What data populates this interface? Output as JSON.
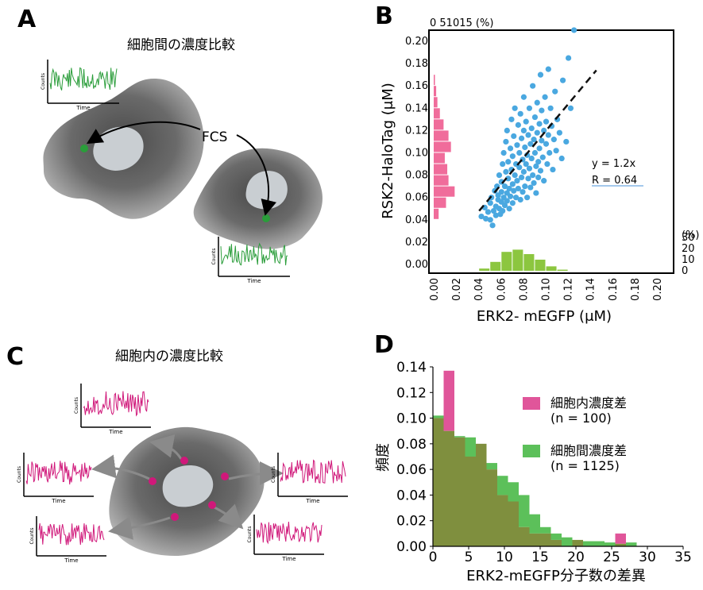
{
  "panel_labels": [
    "A",
    "B",
    "C",
    "D"
  ],
  "panel_a": {
    "title": "細胞間の濃度比較",
    "fcs_label": "FCS",
    "trace_ylabel": "Counts",
    "trace_xlabel": "Time",
    "trace_color": "#2a9d3a",
    "spot_color": "#2a9d3a"
  },
  "panel_c": {
    "title": "細胞内の濃度比較",
    "trace_ylabel": "Counts",
    "trace_xlabel": "Time",
    "trace_color": "#d0187a",
    "spot_color": "#d0187a"
  },
  "chart_data": [
    {
      "type": "scatter",
      "panel": "B",
      "xlabel": "ERK2- mEGFP (μM)",
      "ylabel": "RSK2-HaloTag (μM)",
      "xticks": [
        "0.00",
        "0.02",
        "0.04",
        "0.06",
        "0.08",
        "0.10",
        "0.12",
        "0.14",
        "0.16",
        "0.18",
        "0.20"
      ],
      "yticks": [
        "0.00",
        "0.02",
        "0.04",
        "0.06",
        "0.08",
        "0.10",
        "0.12",
        "0.14",
        "0.16",
        "0.18",
        "0.20"
      ],
      "xlim": [
        0,
        0.2
      ],
      "ylim": [
        0,
        0.2
      ],
      "top_axis_label": "0 51015 (%)",
      "right_axis_label": "(%)",
      "right_ticks": [
        "30",
        "20",
        "10",
        "0"
      ],
      "fit_label": "y = 1.2x",
      "r_label": "R = 0.64",
      "fit_slope": 1.2,
      "colors": {
        "points": "#4aa8e0",
        "x_hist": "#8cc63f",
        "y_hist": "#f06c9b",
        "fit": "#111111"
      },
      "x_hist": {
        "bin_centers": [
          0.045,
          0.055,
          0.065,
          0.075,
          0.085,
          0.095,
          0.105,
          0.115
        ],
        "percent": [
          2,
          8,
          17,
          19,
          15,
          10,
          4,
          1
        ]
      },
      "y_hist": {
        "bin_centers": [
          0.045,
          0.055,
          0.065,
          0.075,
          0.085,
          0.095,
          0.105,
          0.115,
          0.125,
          0.135,
          0.145,
          0.155,
          0.165
        ],
        "percent": [
          4,
          10,
          17,
          12,
          11,
          9,
          14,
          12,
          8,
          5,
          3,
          2,
          1
        ]
      },
      "points": [
        [
          0.042,
          0.043
        ],
        [
          0.045,
          0.051
        ],
        [
          0.046,
          0.041
        ],
        [
          0.048,
          0.047
        ],
        [
          0.05,
          0.055
        ],
        [
          0.05,
          0.04
        ],
        [
          0.051,
          0.06
        ],
        [
          0.052,
          0.035
        ],
        [
          0.053,
          0.048
        ],
        [
          0.054,
          0.066
        ],
        [
          0.055,
          0.052
        ],
        [
          0.055,
          0.044
        ],
        [
          0.056,
          0.07
        ],
        [
          0.057,
          0.058
        ],
        [
          0.057,
          0.062
        ],
        [
          0.058,
          0.05
        ],
        [
          0.058,
          0.08
        ],
        [
          0.059,
          0.045
        ],
        [
          0.06,
          0.074
        ],
        [
          0.06,
          0.056
        ],
        [
          0.06,
          0.065
        ],
        [
          0.061,
          0.09
        ],
        [
          0.061,
          0.048
        ],
        [
          0.062,
          0.06
        ],
        [
          0.062,
          0.1
        ],
        [
          0.063,
          0.07
        ],
        [
          0.063,
          0.053
        ],
        [
          0.064,
          0.083
        ],
        [
          0.064,
          0.11
        ],
        [
          0.065,
          0.064
        ],
        [
          0.065,
          0.057
        ],
        [
          0.065,
          0.12
        ],
        [
          0.066,
          0.077
        ],
        [
          0.066,
          0.092
        ],
        [
          0.067,
          0.05
        ],
        [
          0.067,
          0.068
        ],
        [
          0.068,
          0.104
        ],
        [
          0.068,
          0.061
        ],
        [
          0.069,
          0.085
        ],
        [
          0.069,
          0.13
        ],
        [
          0.07,
          0.072
        ],
        [
          0.07,
          0.055
        ],
        [
          0.07,
          0.097
        ],
        [
          0.071,
          0.115
        ],
        [
          0.071,
          0.066
        ],
        [
          0.072,
          0.08
        ],
        [
          0.072,
          0.14
        ],
        [
          0.073,
          0.06
        ],
        [
          0.073,
          0.09
        ],
        [
          0.074,
          0.107
        ],
        [
          0.074,
          0.075
        ],
        [
          0.075,
          0.125
        ],
        [
          0.075,
          0.068
        ],
        [
          0.076,
          0.087
        ],
        [
          0.076,
          0.1
        ],
        [
          0.077,
          0.058
        ],
        [
          0.077,
          0.135
        ],
        [
          0.078,
          0.078
        ],
        [
          0.078,
          0.113
        ],
        [
          0.079,
          0.094
        ],
        [
          0.079,
          0.065
        ],
        [
          0.08,
          0.12
        ],
        [
          0.08,
          0.083
        ],
        [
          0.08,
          0.15
        ],
        [
          0.081,
          0.07
        ],
        [
          0.081,
          0.105
        ],
        [
          0.082,
          0.09
        ],
        [
          0.082,
          0.128
        ],
        [
          0.083,
          0.06
        ],
        [
          0.083,
          0.098
        ],
        [
          0.084,
          0.116
        ],
        [
          0.084,
          0.077
        ],
        [
          0.085,
          0.14
        ],
        [
          0.085,
          0.086
        ],
        [
          0.086,
          0.108
        ],
        [
          0.086,
          0.069
        ],
        [
          0.087,
          0.122
        ],
        [
          0.087,
          0.095
        ],
        [
          0.088,
          0.08
        ],
        [
          0.088,
          0.16
        ],
        [
          0.089,
          0.112
        ],
        [
          0.089,
          0.073
        ],
        [
          0.09,
          0.1
        ],
        [
          0.09,
          0.132
        ],
        [
          0.091,
          0.088
        ],
        [
          0.091,
          0.064
        ],
        [
          0.092,
          0.118
        ],
        [
          0.092,
          0.145
        ],
        [
          0.093,
          0.092
        ],
        [
          0.093,
          0.078
        ],
        [
          0.094,
          0.126
        ],
        [
          0.094,
          0.104
        ],
        [
          0.095,
          0.17
        ],
        [
          0.095,
          0.084
        ],
        [
          0.096,
          0.111
        ],
        [
          0.096,
          0.138
        ],
        [
          0.097,
          0.096
        ],
        [
          0.098,
          0.12
        ],
        [
          0.098,
          0.075
        ],
        [
          0.099,
          0.15
        ],
        [
          0.1,
          0.108
        ],
        [
          0.1,
          0.128
        ],
        [
          0.101,
          0.09
        ],
        [
          0.102,
          0.175
        ],
        [
          0.102,
          0.116
        ],
        [
          0.103,
          0.1
        ],
        [
          0.104,
          0.14
        ],
        [
          0.105,
          0.124
        ],
        [
          0.106,
          0.085
        ],
        [
          0.107,
          0.112
        ],
        [
          0.108,
          0.155
        ],
        [
          0.109,
          0.102
        ],
        [
          0.11,
          0.13
        ],
        [
          0.112,
          0.118
        ],
        [
          0.114,
          0.095
        ],
        [
          0.115,
          0.165
        ],
        [
          0.118,
          0.11
        ],
        [
          0.12,
          0.185
        ],
        [
          0.122,
          0.14
        ],
        [
          0.125,
          0.21
        ]
      ]
    },
    {
      "type": "bar",
      "panel": "D",
      "xlabel": "ERK2-mEGFP分子数の差異",
      "ylabel": "頻度",
      "xticks": [
        "0",
        "5",
        "10",
        "15",
        "20",
        "25",
        "30",
        "35"
      ],
      "yticks": [
        "0.00",
        "0.02",
        "0.04",
        "0.06",
        "0.08",
        "0.10",
        "0.12",
        "0.14"
      ],
      "xlim": [
        0,
        35
      ],
      "ylim": [
        0,
        0.14
      ],
      "bin_width": 1.5,
      "bin_starts": [
        0,
        1.5,
        3,
        4.5,
        6,
        7.5,
        9,
        10.5,
        12,
        13.5,
        15,
        16.5,
        18,
        19.5,
        21,
        22.5,
        24,
        25.5,
        27
      ],
      "series": [
        {
          "name": "細胞内濃度差",
          "n_label": "(n = 100)",
          "color": "#e0559a",
          "values": [
            0.1,
            0.137,
            0.085,
            0.07,
            0.08,
            0.06,
            0.04,
            0.035,
            0.015,
            0.01,
            0.01,
            0.005,
            0.0,
            0.005,
            0.0,
            0.0,
            0.0,
            0.01,
            0.0
          ]
        },
        {
          "name": "細胞間濃度差",
          "n_label": "(n = 1125)",
          "color": "#5cc05a",
          "values": [
            0.102,
            0.09,
            0.086,
            0.085,
            0.08,
            0.065,
            0.055,
            0.05,
            0.04,
            0.025,
            0.015,
            0.01,
            0.007,
            0.005,
            0.004,
            0.004,
            0.003,
            0.002,
            0.003
          ]
        }
      ],
      "overlap_color": "#7f8f3e"
    }
  ]
}
